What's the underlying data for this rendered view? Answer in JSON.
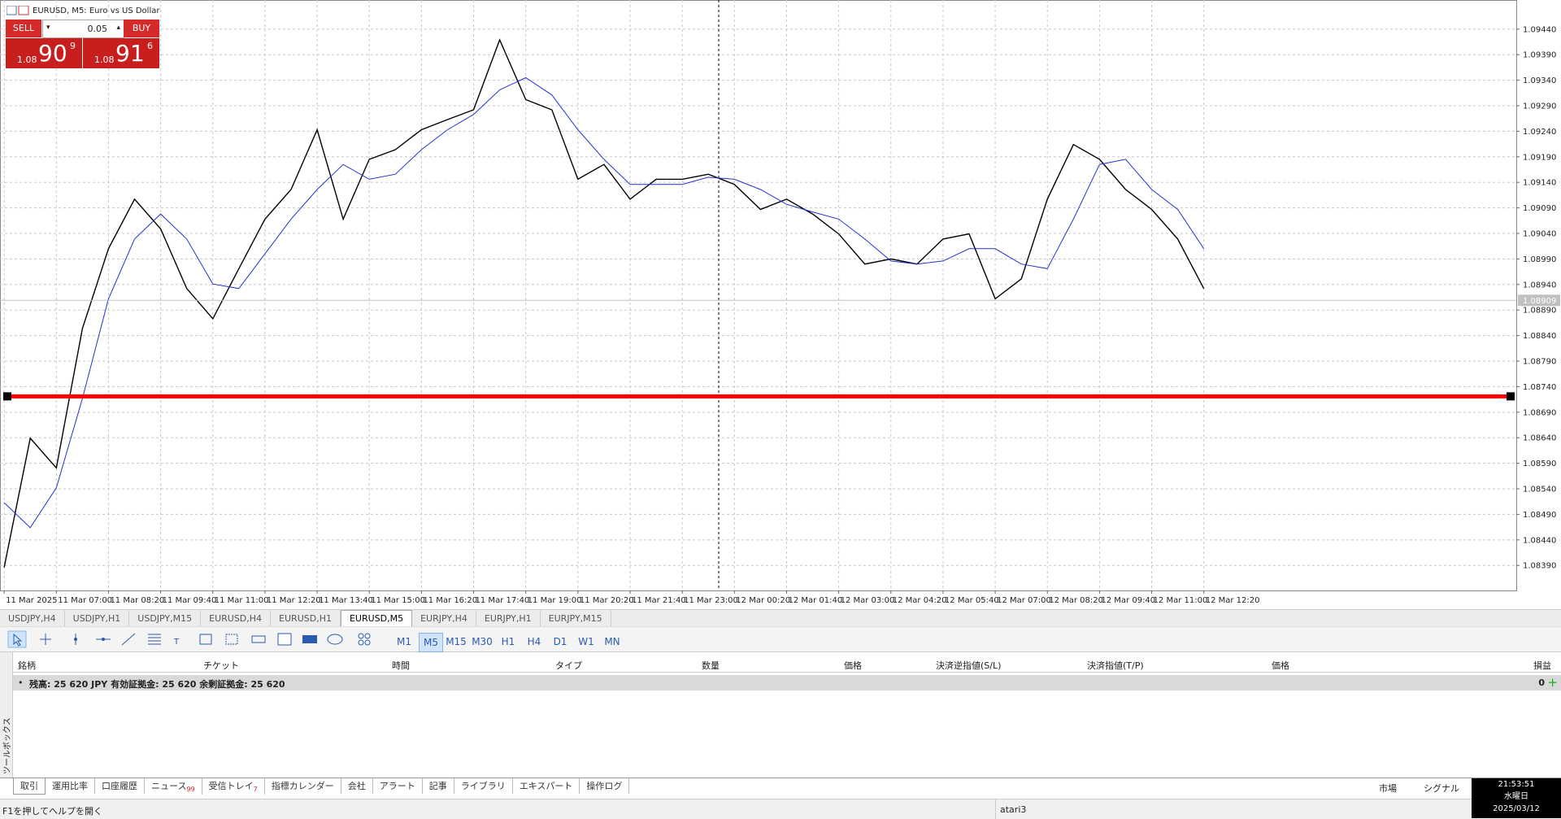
{
  "window": {
    "title": "EURUSD, M5:  Euro vs US Dollar"
  },
  "trade": {
    "sell": "SELL",
    "buy": "BUY",
    "lot": "0.05",
    "sell_price": {
      "prefix": "1.08",
      "big": "90",
      "pip": "9"
    },
    "buy_price": {
      "prefix": "1.08",
      "big": "91",
      "pip": "6"
    }
  },
  "chart_data": {
    "type": "line",
    "xlim": [
      -0.08,
      28.99
    ],
    "xticks": [
      {
        "value": 0,
        "label": "11 Mar 2025"
      },
      {
        "value": 1,
        "label": "11 Mar 07:00"
      },
      {
        "value": 2,
        "label": "11 Mar 08:20"
      },
      {
        "value": 3,
        "label": "11 Mar 09:40"
      },
      {
        "value": 4,
        "label": "11 Mar 11:00"
      },
      {
        "value": 5,
        "label": "11 Mar 12:20"
      },
      {
        "value": 6,
        "label": "11 Mar 13:40"
      },
      {
        "value": 7,
        "label": "11 Mar 15:00"
      },
      {
        "value": 8,
        "label": "11 Mar 16:20"
      },
      {
        "value": 9,
        "label": "11 Mar 17:40"
      },
      {
        "value": 10,
        "label": "11 Mar 19:00"
      },
      {
        "value": 11,
        "label": "11 Mar 20:20"
      },
      {
        "value": 12,
        "label": "11 Mar 21:40"
      },
      {
        "value": 13,
        "label": "11 Mar 23:00"
      },
      {
        "value": 14,
        "label": "12 Mar 00:20"
      },
      {
        "value": 15,
        "label": "12 Mar 01:40"
      },
      {
        "value": 16,
        "label": "12 Mar 03:00"
      },
      {
        "value": 17,
        "label": "12 Mar 04:20"
      },
      {
        "value": 18,
        "label": "12 Mar 05:40"
      },
      {
        "value": 19,
        "label": "12 Mar 07:00"
      },
      {
        "value": 20,
        "label": "12 Mar 08:20"
      },
      {
        "value": 21,
        "label": "12 Mar 09:40"
      },
      {
        "value": 22,
        "label": "12 Mar 11:00"
      },
      {
        "value": 23,
        "label": "12 Mar 12:20"
      }
    ],
    "ylim": [
      1.08341,
      1.09497
    ],
    "yticks": [
      {
        "value": 1.0944,
        "label": "1.09440"
      },
      {
        "value": 1.0939,
        "label": "1.09390"
      },
      {
        "value": 1.0934,
        "label": "1.09340"
      },
      {
        "value": 1.0929,
        "label": "1.09290"
      },
      {
        "value": 1.0924,
        "label": "1.09240"
      },
      {
        "value": 1.0919,
        "label": "1.09190"
      },
      {
        "value": 1.0914,
        "label": "1.09140"
      },
      {
        "value": 1.0909,
        "label": "1.09090"
      },
      {
        "value": 1.0904,
        "label": "1.09040"
      },
      {
        "value": 1.0899,
        "label": "1.08990"
      },
      {
        "value": 1.0894,
        "label": "1.08940"
      },
      {
        "value": 1.0889,
        "label": "1.08890"
      },
      {
        "value": 1.0884,
        "label": "1.08840"
      },
      {
        "value": 1.0879,
        "label": "1.08790"
      },
      {
        "value": 1.0874,
        "label": "1.08740"
      },
      {
        "value": 1.0869,
        "label": "1.08690"
      },
      {
        "value": 1.0864,
        "label": "1.08640"
      },
      {
        "value": 1.0859,
        "label": "1.08590"
      },
      {
        "value": 1.0854,
        "label": "1.08540"
      },
      {
        "value": 1.0849,
        "label": "1.08490"
      },
      {
        "value": 1.0844,
        "label": "1.08440"
      },
      {
        "value": 1.0839,
        "label": "1.08390"
      }
    ],
    "grid": true,
    "x": [
      0,
      0.5,
      1,
      1.5,
      2,
      2.5,
      3,
      3.5,
      4,
      4.5,
      5,
      5.5,
      6,
      6.5,
      7,
      7.5,
      8,
      8.5,
      9,
      9.5,
      10,
      10.5,
      11,
      11.5,
      12,
      12.5,
      13,
      13.5,
      14,
      14.5,
      15,
      15.5,
      16,
      16.5,
      17,
      17.5,
      18,
      18.5,
      19,
      19.5,
      20,
      20.5,
      21,
      21.5,
      22,
      22.5,
      23
    ],
    "series": [
      {
        "color": "#000000",
        "values": [
          1.08386,
          1.08639,
          1.08581,
          1.08854,
          1.0901,
          1.09107,
          1.09049,
          1.08932,
          1.08873,
          1.08971,
          1.09068,
          1.09126,
          1.09243,
          1.09068,
          1.09185,
          1.09204,
          1.09243,
          1.09263,
          1.09282,
          1.09419,
          1.09302,
          1.09282,
          1.09146,
          1.09175,
          1.09107,
          1.09146,
          1.09146,
          1.09156,
          1.09136,
          1.09087,
          1.09107,
          1.09078,
          1.09039,
          1.0898,
          1.0899,
          1.0898,
          1.09029,
          1.09039,
          1.08912,
          1.08951,
          1.09107,
          1.09214,
          1.09185,
          1.09126,
          1.09087,
          1.09029,
          1.08932
        ]
      },
      {
        "color": "#2233cc",
        "values": [
          1.08513,
          1.08464,
          1.08542,
          1.08717,
          1.08912,
          1.09029,
          1.09078,
          1.09029,
          1.08941,
          1.08932,
          1.09,
          1.09068,
          1.09126,
          1.09175,
          1.09146,
          1.09156,
          1.09204,
          1.09243,
          1.09273,
          1.09321,
          1.09345,
          1.09311,
          1.09243,
          1.09185,
          1.09136,
          1.09136,
          1.09136,
          1.0915,
          1.09146,
          1.09126,
          1.09097,
          1.09082,
          1.09068,
          1.09029,
          1.08986,
          1.0898,
          1.08986,
          1.0901,
          1.0901,
          1.0898,
          1.08971,
          1.09068,
          1.09175,
          1.09185,
          1.09126,
          1.09087,
          1.0901
        ]
      }
    ],
    "hlines": [
      {
        "value": 1.08721,
        "color": "#ff0000"
      }
    ],
    "bid": {
      "value": 1.08909,
      "label": "1.08909"
    }
  },
  "chart_tabs": [
    {
      "label": "USDJPY,H4"
    },
    {
      "label": "USDJPY,H1"
    },
    {
      "label": "USDJPY,M15"
    },
    {
      "label": "EURUSD,H4"
    },
    {
      "label": "EURUSD,H1"
    },
    {
      "label": "EURUSD,M5",
      "active": true
    },
    {
      "label": "EURJPY,H4"
    },
    {
      "label": "EURJPY,H1"
    },
    {
      "label": "EURJPY,M15"
    }
  ],
  "timeframes": [
    {
      "label": "M1"
    },
    {
      "label": "M5",
      "active": true
    },
    {
      "label": "M15"
    },
    {
      "label": "M30"
    },
    {
      "label": "H1"
    },
    {
      "label": "H4"
    },
    {
      "label": "D1"
    },
    {
      "label": "W1"
    },
    {
      "label": "MN"
    }
  ],
  "terminal": {
    "side_label": "ツールボックス",
    "columns": [
      "銘柄",
      "チケット",
      "時間",
      "タイプ",
      "数量",
      "価格",
      "決済逆指値(S/L)",
      "決済指値(T/P)",
      "価格",
      "損益"
    ],
    "summary": "残高: 25 620 JPY  有効証拠金: 25 620  余剰証拠金: 25 620",
    "profit": "0",
    "tabs": [
      {
        "label": "取引",
        "active": true
      },
      {
        "label": "運用比率"
      },
      {
        "label": "口座履歴"
      },
      {
        "label": "ニュース",
        "badge": "99"
      },
      {
        "label": "受信トレイ",
        "badge": "7"
      },
      {
        "label": "指標カレンダー"
      },
      {
        "label": "会社"
      },
      {
        "label": "アラート"
      },
      {
        "label": "記事"
      },
      {
        "label": "ライブラリ"
      },
      {
        "label": "エキスパート"
      },
      {
        "label": "操作ログ"
      }
    ]
  },
  "status": {
    "help": "F1を押してヘルプを開く",
    "account": "atari3",
    "market": "市場",
    "signal": "シグナル",
    "time": "21:53:51",
    "weekday": "水曜日",
    "date": "2025/03/12"
  }
}
